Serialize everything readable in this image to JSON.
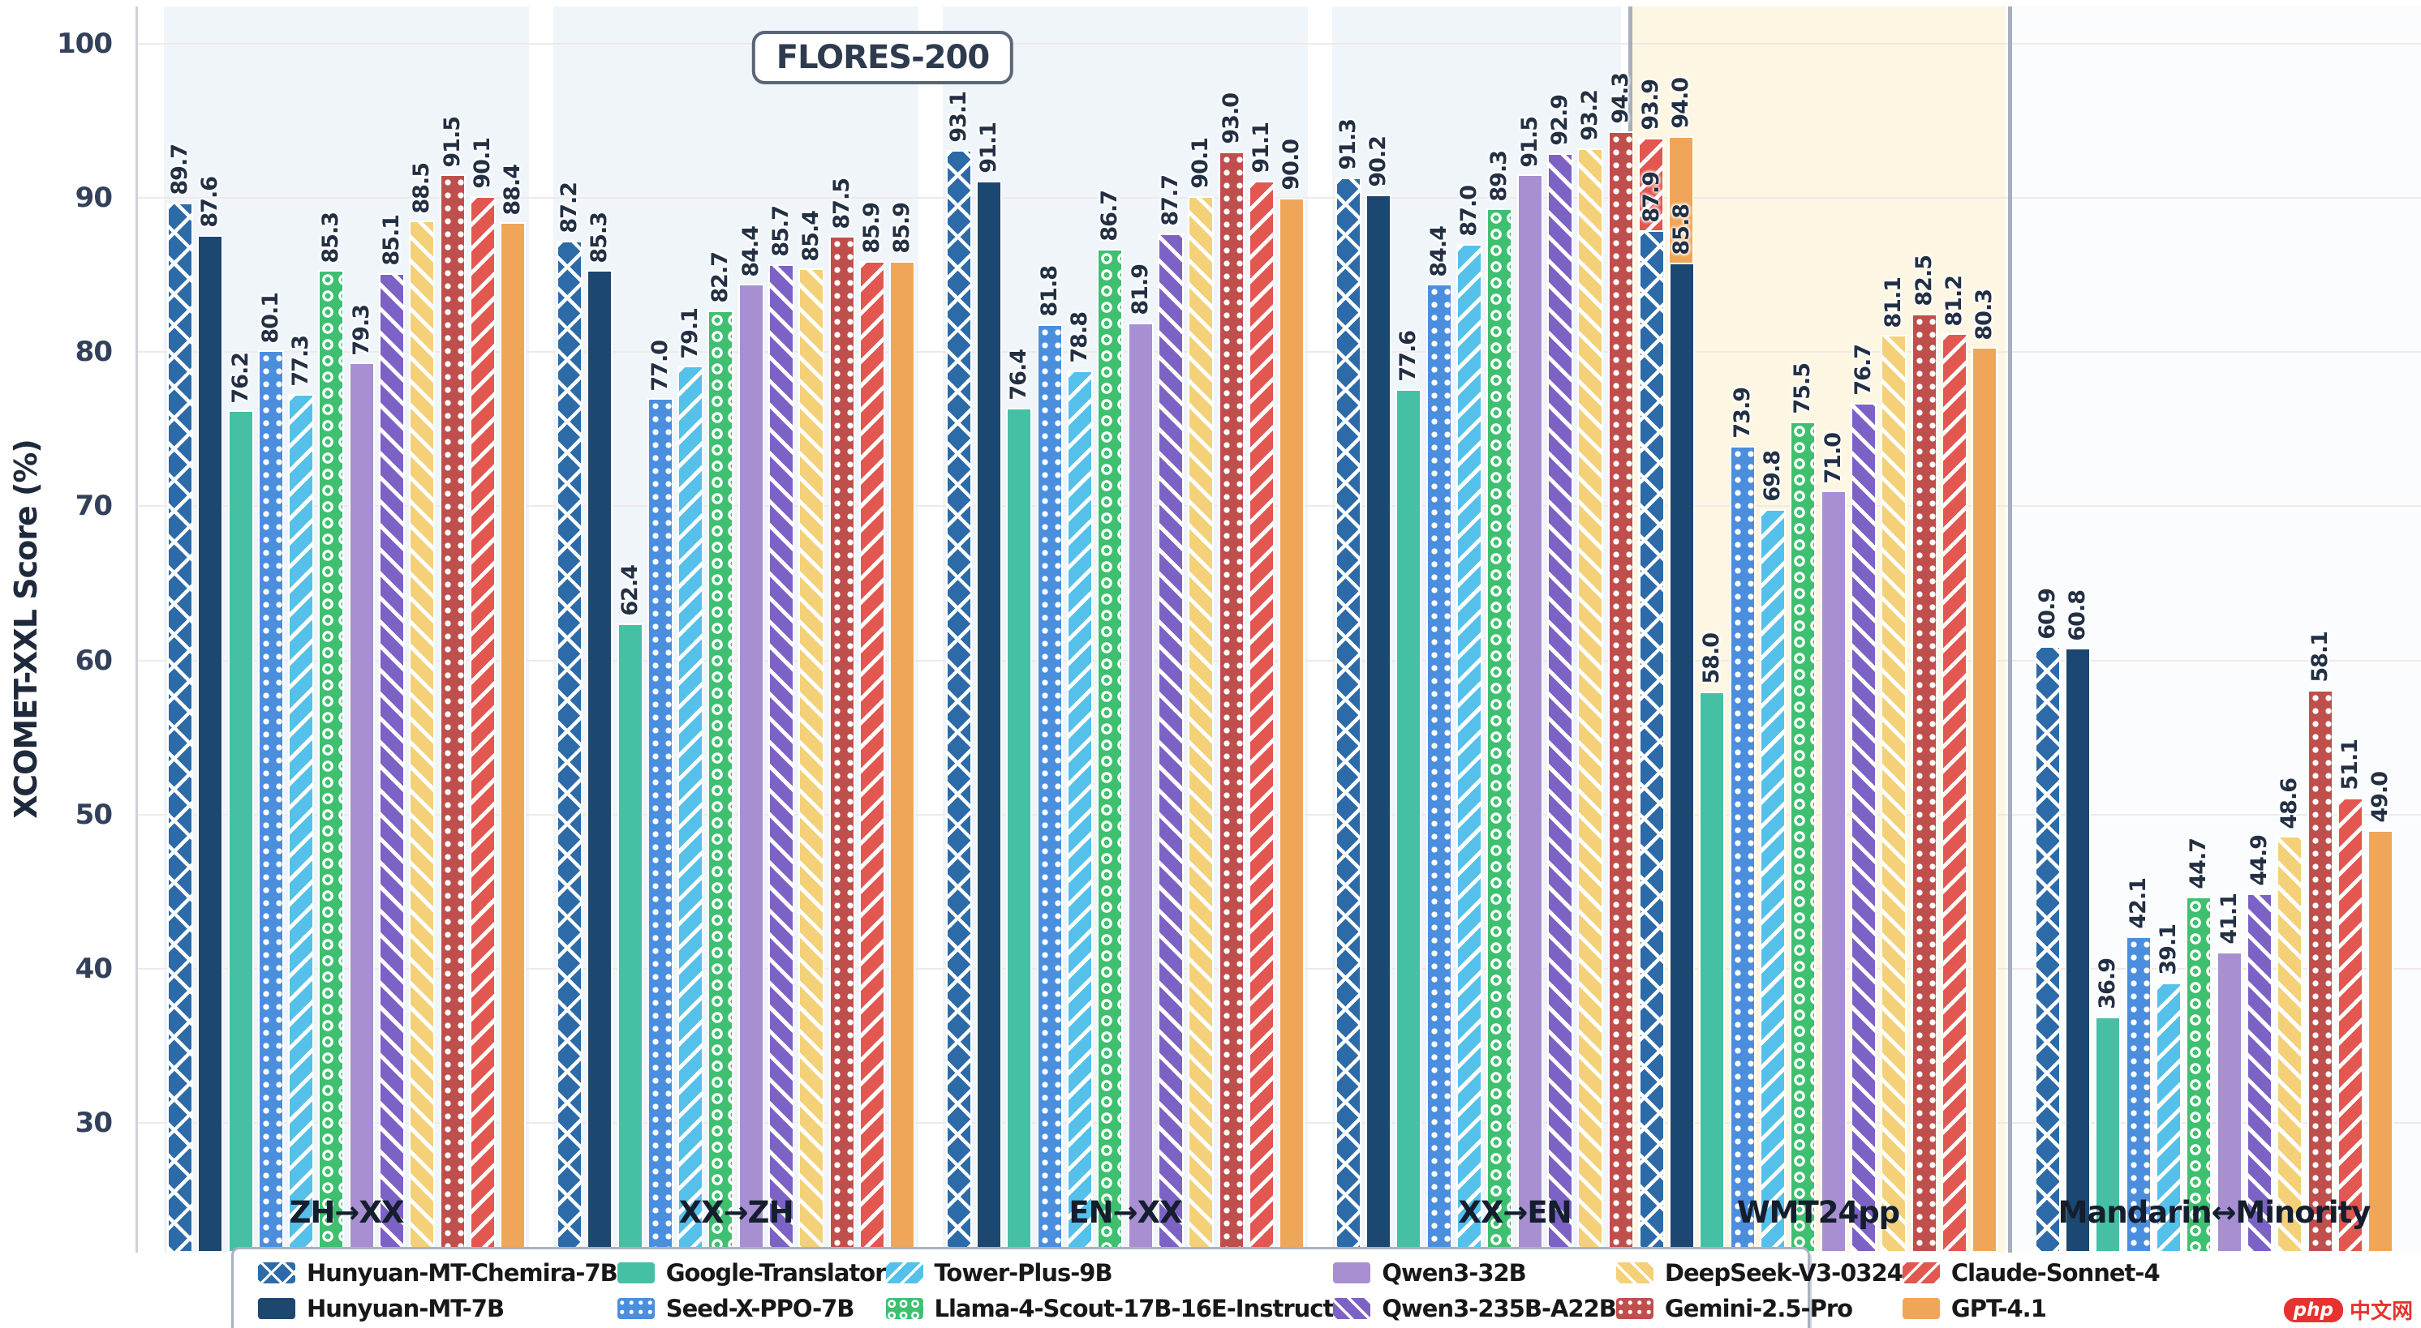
{
  "watermark": {
    "badge": "php",
    "text": "中文网"
  },
  "chart_data": {
    "type": "bar",
    "title_badge": "FLORES-200",
    "ylabel": "XCOMET-XXL Score (%)",
    "xlabel": "",
    "yticks": [
      100,
      90,
      80,
      70,
      60,
      50,
      40,
      30
    ],
    "ylim": [
      21.6,
      102.4
    ],
    "grid": true,
    "legend_position": "bottom",
    "categories": [
      "ZH→XX",
      "XX→ZH",
      "EN→XX",
      "XX→EN",
      "WMT24pp",
      "Mandarin↔Minority"
    ],
    "sections": [
      {
        "label": "FLORES-200",
        "category_indexes": [
          0,
          1,
          2,
          3
        ],
        "background": "#f0f5fa"
      },
      {
        "label": "WMT24pp",
        "category_indexes": [
          4
        ],
        "background": "#fdf6e2"
      },
      {
        "label": "Mandarin↔Minority",
        "category_indexes": [
          5
        ],
        "background": "#fbfcfe"
      }
    ],
    "group_backgrounds": [
      "#f0f5fa",
      "#f0f5fa",
      "#f0f5fa",
      "#f0f5fa",
      "#fdf6e2",
      "#fbfcfe"
    ],
    "series": [
      {
        "name": "Hunyuan-MT-Chemira-7B",
        "color": "#2d6ba8",
        "pattern": "crosshatch",
        "values": [
          89.7,
          87.2,
          93.1,
          91.3,
          87.9,
          60.9
        ]
      },
      {
        "name": "Hunyuan-MT-7B",
        "color": "#1b4771",
        "pattern": "solid",
        "values": [
          87.6,
          85.3,
          91.1,
          90.2,
          85.8,
          60.8
        ]
      },
      {
        "name": "Google-Translator",
        "color": "#46c0a4",
        "pattern": "solid",
        "values": [
          76.2,
          62.4,
          76.4,
          77.6,
          58.0,
          36.9
        ]
      },
      {
        "name": "Seed-X-PPO-7B",
        "color": "#4b8ede",
        "pattern": "dots",
        "values": [
          80.1,
          77.0,
          81.8,
          84.4,
          73.9,
          42.1
        ]
      },
      {
        "name": "Tower-Plus-9B",
        "color": "#55c0ea",
        "pattern": "diag-up",
        "values": [
          77.3,
          79.1,
          78.8,
          87.0,
          69.8,
          39.1
        ]
      },
      {
        "name": "Llama-4-Scout-17B-16E-Instruct",
        "color": "#3fbf70",
        "pattern": "rings",
        "values": [
          85.3,
          82.7,
          86.7,
          89.3,
          75.5,
          44.7
        ]
      },
      {
        "name": "Qwen3-32B",
        "color": "#a78fd2",
        "pattern": "solid",
        "values": [
          79.3,
          84.4,
          81.9,
          91.5,
          71.0,
          41.1
        ]
      },
      {
        "name": "Qwen3-235B-A22B",
        "color": "#7d62c5",
        "pattern": "diag-down",
        "values": [
          85.1,
          85.7,
          87.7,
          92.9,
          76.7,
          44.9
        ]
      },
      {
        "name": "DeepSeek-V3-0324",
        "color": "#f4d078",
        "pattern": "diag-down",
        "values": [
          88.5,
          85.4,
          90.1,
          93.2,
          81.1,
          48.6
        ]
      },
      {
        "name": "Gemini-2.5-Pro",
        "color": "#bf4f4c",
        "pattern": "dots",
        "values": [
          91.5,
          87.5,
          93.0,
          94.3,
          82.5,
          58.1
        ]
      },
      {
        "name": "Claude-Sonnet-4",
        "color": "#e2574f",
        "pattern": "diag-up",
        "values": [
          90.1,
          85.9,
          91.1,
          93.9,
          81.2,
          51.1
        ]
      },
      {
        "name": "GPT-4.1",
        "color": "#f0a658",
        "pattern": "solid",
        "values": [
          88.4,
          85.9,
          90.0,
          94.0,
          80.3,
          49.0
        ]
      }
    ]
  }
}
